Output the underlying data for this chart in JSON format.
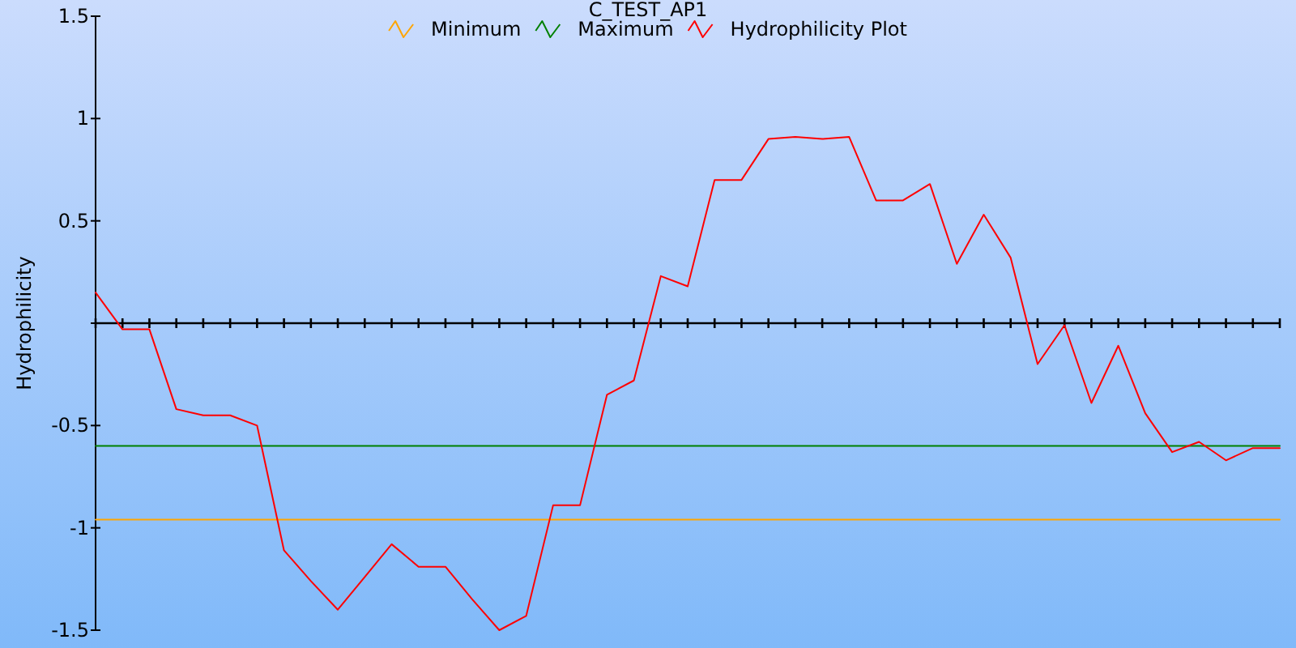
{
  "chart_data": {
    "type": "line",
    "title": "C_TEST_AP1",
    "ylabel": "Hydrophilicity",
    "categories": [
      null,
      null,
      null,
      null,
      null,
      null,
      null,
      null,
      null,
      null,
      null,
      null,
      null,
      null,
      null,
      null,
      null,
      null,
      null,
      null,
      null,
      null,
      null,
      null,
      null,
      null,
      null,
      null,
      null,
      null,
      null,
      null,
      null,
      null,
      null,
      null,
      null,
      null,
      null,
      null,
      null,
      null,
      null,
      null,
      null
    ],
    "series": [
      {
        "name": "Minimum",
        "color": "#ffa500",
        "values": [
          -0.96,
          -0.96,
          -0.96,
          -0.96,
          -0.96,
          -0.96,
          -0.96,
          -0.96,
          -0.96,
          -0.96,
          -0.96,
          -0.96,
          -0.96,
          -0.96,
          -0.96,
          -0.96,
          -0.96,
          -0.96,
          -0.96,
          -0.96,
          -0.96,
          -0.96,
          -0.96,
          -0.96,
          -0.96,
          -0.96,
          -0.96,
          -0.96,
          -0.96,
          -0.96,
          -0.96,
          -0.96,
          -0.96,
          -0.96,
          -0.96,
          -0.96,
          -0.96,
          -0.96,
          -0.96,
          -0.96,
          -0.96,
          -0.96,
          -0.96,
          -0.96,
          -0.96
        ]
      },
      {
        "name": "Maximum",
        "color": "#008000",
        "values": [
          -0.6,
          -0.6,
          -0.6,
          -0.6,
          -0.6,
          -0.6,
          -0.6,
          -0.6,
          -0.6,
          -0.6,
          -0.6,
          -0.6,
          -0.6,
          -0.6,
          -0.6,
          -0.6,
          -0.6,
          -0.6,
          -0.6,
          -0.6,
          -0.6,
          -0.6,
          -0.6,
          -0.6,
          -0.6,
          -0.6,
          -0.6,
          -0.6,
          -0.6,
          -0.6,
          -0.6,
          -0.6,
          -0.6,
          -0.6,
          -0.6,
          -0.6,
          -0.6,
          -0.6,
          -0.6,
          -0.6,
          -0.6,
          -0.6,
          -0.6,
          -0.6,
          -0.6
        ]
      },
      {
        "name": "Hydrophilicity Plot",
        "color": "#ff0000",
        "values": [
          0.15,
          -0.03,
          -0.03,
          -0.42,
          -0.45,
          -0.45,
          -0.5,
          -1.11,
          -1.26,
          -1.4,
          -1.24,
          -1.08,
          -1.19,
          -1.19,
          -1.35,
          -1.5,
          -1.43,
          -0.89,
          -0.89,
          -0.35,
          -0.28,
          0.23,
          0.18,
          0.7,
          0.7,
          0.9,
          0.91,
          0.9,
          0.91,
          0.6,
          0.6,
          0.68,
          0.29,
          0.53,
          0.32,
          -0.2,
          -0.01,
          -0.39,
          -0.11,
          -0.44,
          -0.63,
          -0.58,
          -0.67,
          -0.61,
          -0.61
        ]
      }
    ],
    "ylim": [
      -1.5,
      1.5
    ],
    "yticks": [
      -1.5,
      -1,
      -0.5,
      {
        "value": 0,
        "label": null
      },
      0.5,
      1,
      1.5
    ],
    "legend": "top",
    "line_style": "solid"
  }
}
